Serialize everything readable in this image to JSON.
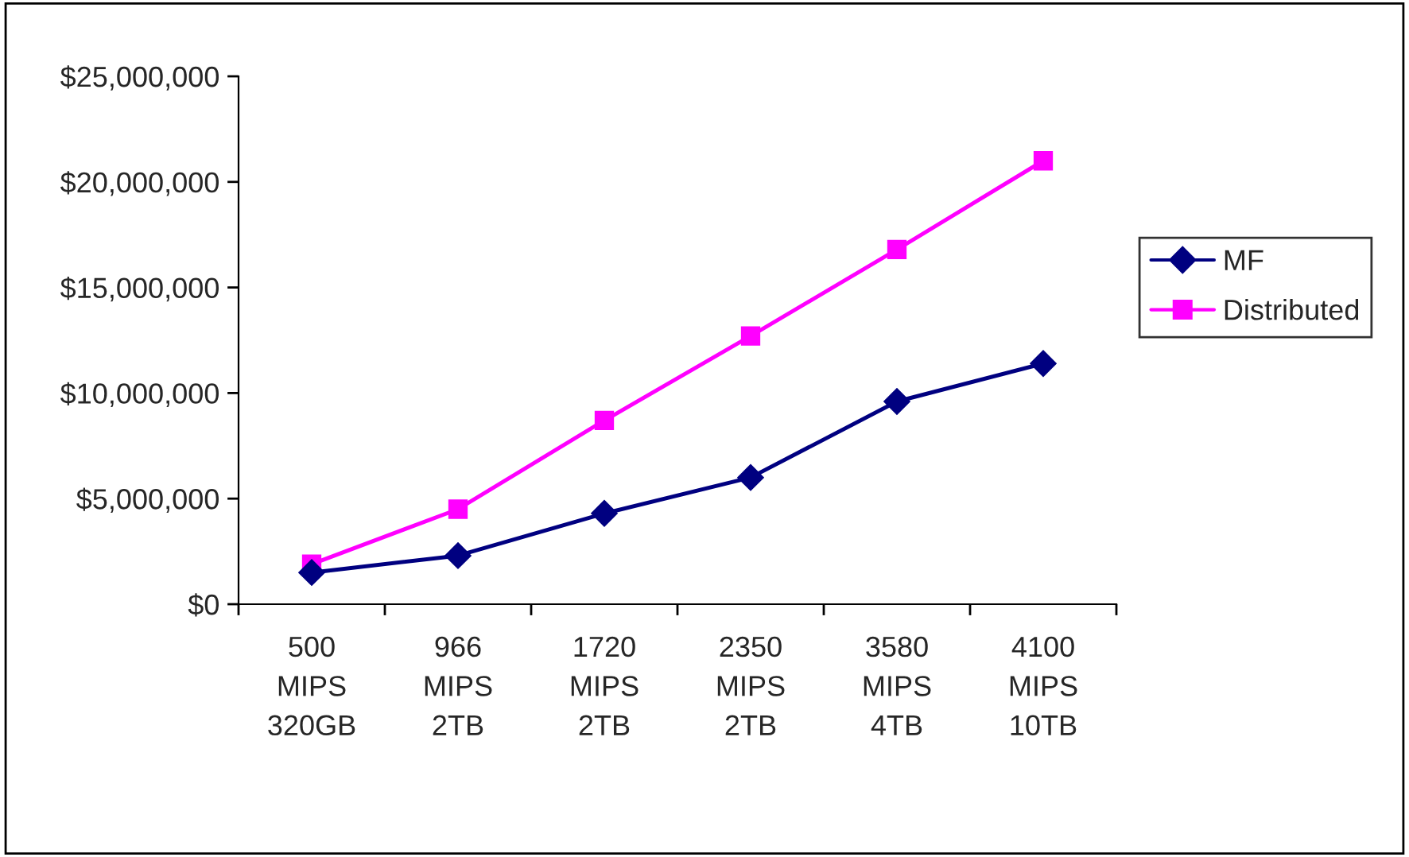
{
  "chart_data": {
    "type": "line",
    "categories": [
      "500\nMIPS\n320GB",
      "966\nMIPS\n2TB",
      "1720\nMIPS\n2TB",
      "2350\nMIPS\n2TB",
      "3580\nMIPS\n4TB",
      "4100\nMIPS\n10TB"
    ],
    "series": [
      {
        "name": "MF",
        "color": "#000080",
        "marker": "diamond",
        "values": [
          1500000,
          2300000,
          4300000,
          6000000,
          9600000,
          11400000
        ]
      },
      {
        "name": "Distributed",
        "color": "#ff00ff",
        "marker": "square",
        "values": [
          1900000,
          4500000,
          8700000,
          12700000,
          16800000,
          21000000
        ]
      }
    ],
    "ylim": [
      0,
      25000000
    ],
    "yticks": [
      {
        "value": 0,
        "label": "$0"
      },
      {
        "value": 5000000,
        "label": "$5,000,000"
      },
      {
        "value": 10000000,
        "label": "$10,000,000"
      },
      {
        "value": 15000000,
        "label": "$15,000,000"
      },
      {
        "value": 20000000,
        "label": "$20,000,000"
      },
      {
        "value": 25000000,
        "label": "$25,000,000"
      }
    ],
    "grid": false,
    "legend": "right",
    "line_style": "solid"
  }
}
